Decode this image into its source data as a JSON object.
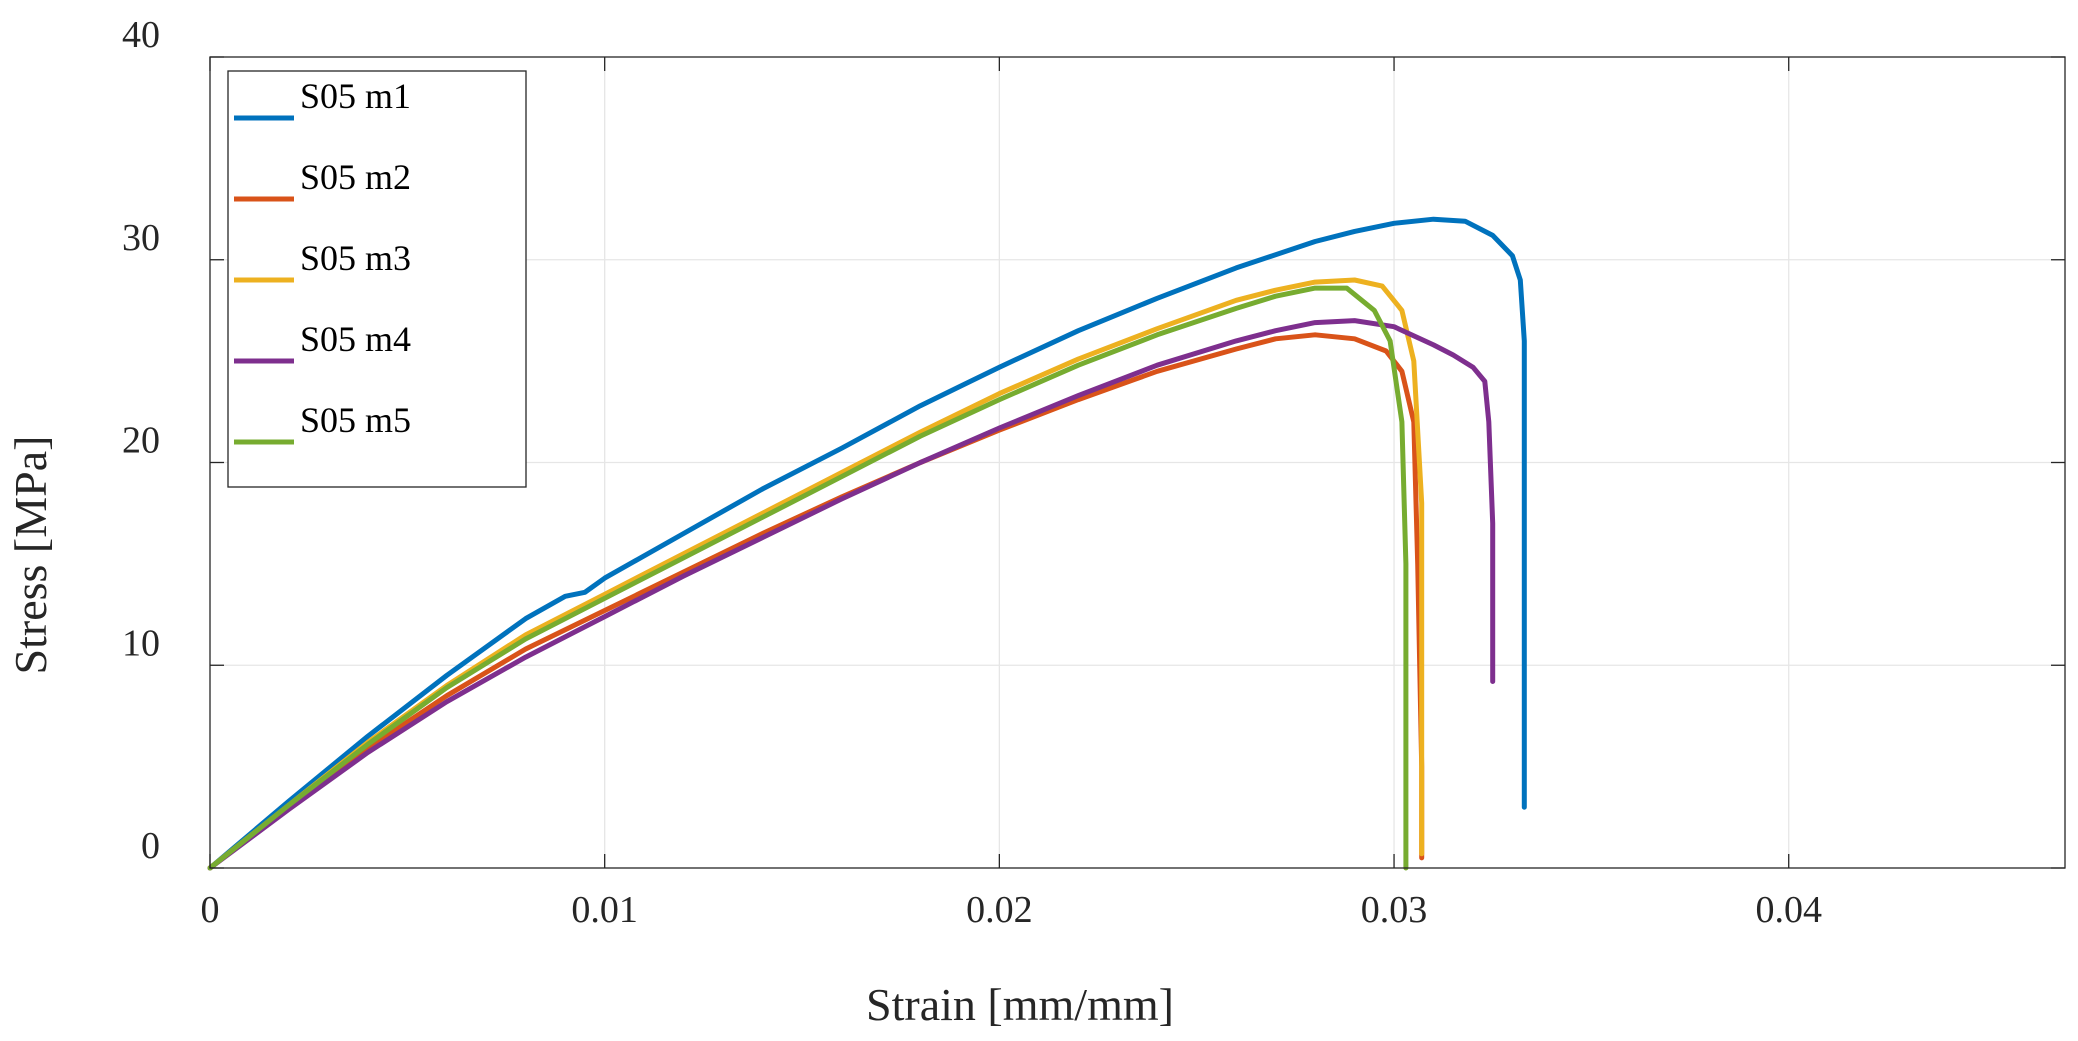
{
  "chart_data": {
    "type": "line",
    "title": "",
    "xlabel": "Strain [mm/mm]",
    "ylabel": "Stress [MPa]",
    "xlim": [
      0,
      0.047
    ],
    "ylim": [
      0,
      40
    ],
    "xticks": [
      0,
      0.01,
      0.02,
      0.03,
      0.04
    ],
    "xtick_labels": [
      "0",
      "0.01",
      "0.02",
      "0.03",
      "0.04"
    ],
    "yticks": [
      0,
      10,
      20,
      30,
      40
    ],
    "ytick_labels": [
      "0",
      "10",
      "20",
      "30",
      "40"
    ],
    "grid": true,
    "legend_position": "top-left",
    "series": [
      {
        "name": "S05 m1",
        "color": "#0072BD",
        "x": [
          0,
          0.002,
          0.004,
          0.006,
          0.008,
          0.009,
          0.0095,
          0.01,
          0.012,
          0.014,
          0.016,
          0.018,
          0.02,
          0.022,
          0.024,
          0.026,
          0.028,
          0.029,
          0.03,
          0.031,
          0.0318,
          0.0325,
          0.033,
          0.0332,
          0.0333,
          0.0333,
          0.0333,
          0.0333
        ],
        "values": [
          0,
          3.3,
          6.5,
          9.5,
          12.3,
          13.4,
          13.6,
          14.3,
          16.5,
          18.7,
          20.7,
          22.8,
          24.7,
          26.5,
          28.1,
          29.6,
          30.9,
          31.4,
          31.8,
          32.0,
          31.9,
          31.2,
          30.2,
          29.0,
          26.0,
          20.0,
          10.0,
          3.0
        ]
      },
      {
        "name": "S05 m2",
        "color": "#D95319",
        "x": [
          0,
          0.002,
          0.004,
          0.006,
          0.008,
          0.01,
          0.012,
          0.014,
          0.016,
          0.018,
          0.02,
          0.022,
          0.024,
          0.026,
          0.027,
          0.028,
          0.029,
          0.0298,
          0.0302,
          0.0305,
          0.0306,
          0.0307,
          0.0307
        ],
        "values": [
          0,
          3.0,
          5.9,
          8.5,
          10.8,
          12.7,
          14.6,
          16.5,
          18.3,
          20.0,
          21.6,
          23.1,
          24.5,
          25.6,
          26.1,
          26.3,
          26.1,
          25.5,
          24.5,
          22.0,
          15.0,
          5.0,
          0.5
        ]
      },
      {
        "name": "S05 m3",
        "color": "#EDB120",
        "x": [
          0,
          0.002,
          0.004,
          0.006,
          0.008,
          0.01,
          0.012,
          0.014,
          0.016,
          0.018,
          0.02,
          0.022,
          0.024,
          0.026,
          0.027,
          0.028,
          0.029,
          0.0297,
          0.0302,
          0.0305,
          0.0307,
          0.0307,
          0.0307
        ],
        "values": [
          0,
          3.1,
          6.2,
          9.0,
          11.5,
          13.5,
          15.5,
          17.5,
          19.5,
          21.5,
          23.4,
          25.1,
          26.6,
          28.0,
          28.5,
          28.9,
          29.0,
          28.7,
          27.5,
          25.0,
          18.0,
          8.0,
          0.7
        ]
      },
      {
        "name": "S05 m4",
        "color": "#7E2F8E",
        "x": [
          0,
          0.002,
          0.004,
          0.006,
          0.008,
          0.01,
          0.012,
          0.014,
          0.016,
          0.018,
          0.02,
          0.022,
          0.024,
          0.026,
          0.027,
          0.028,
          0.029,
          0.03,
          0.031,
          0.0315,
          0.032,
          0.0323,
          0.0324,
          0.0325,
          0.0325
        ],
        "values": [
          0,
          2.9,
          5.7,
          8.2,
          10.4,
          12.4,
          14.4,
          16.3,
          18.2,
          20.0,
          21.7,
          23.3,
          24.8,
          26.0,
          26.5,
          26.9,
          27.0,
          26.7,
          25.8,
          25.3,
          24.7,
          24.0,
          22.0,
          17.0,
          9.2
        ]
      },
      {
        "name": "S05 m5",
        "color": "#77AC30",
        "x": [
          0,
          0.002,
          0.004,
          0.006,
          0.008,
          0.01,
          0.012,
          0.014,
          0.016,
          0.018,
          0.02,
          0.022,
          0.024,
          0.026,
          0.027,
          0.028,
          0.0288,
          0.0295,
          0.0299,
          0.0302,
          0.0303,
          0.0303,
          0.0303
        ],
        "values": [
          0,
          3.1,
          6.1,
          8.9,
          11.3,
          13.3,
          15.3,
          17.3,
          19.3,
          21.3,
          23.1,
          24.8,
          26.3,
          27.6,
          28.2,
          28.6,
          28.6,
          27.5,
          26.0,
          22.0,
          15.0,
          5.0,
          0.0
        ]
      }
    ]
  }
}
